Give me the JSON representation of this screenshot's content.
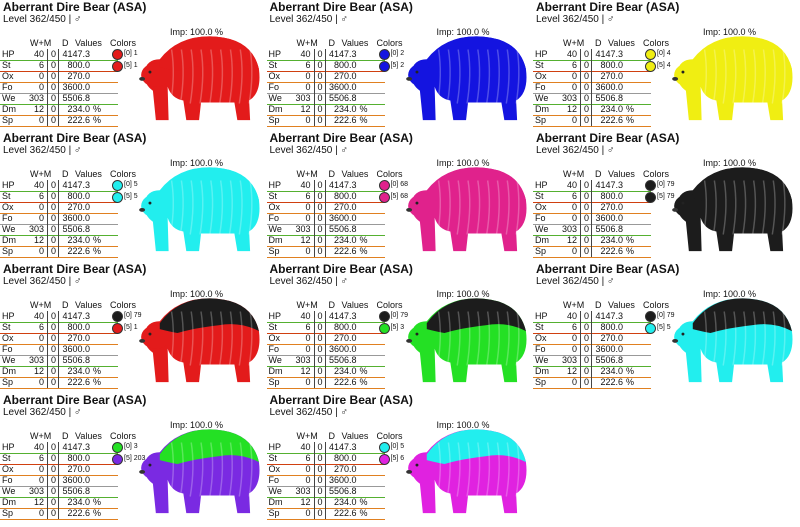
{
  "cards": [
    {
      "title": "Aberrant Dire Bear (ASA)",
      "level": "Level 362/450 | ♂",
      "imp": "Imp: 100.0 %",
      "header": [
        "W+M",
        "D",
        "Values"
      ],
      "colors_label": "Colors",
      "stats": [
        [
          "HP",
          "40",
          "0",
          "4147.3",
          ""
        ],
        [
          "St",
          "6",
          "0",
          "800.0",
          ""
        ],
        [
          "Ox",
          "0",
          "0",
          "270.0",
          ""
        ],
        [
          "Fo",
          "0",
          "0",
          "3600.0",
          ""
        ],
        [
          "We",
          "303",
          "0",
          "5506.8",
          ""
        ],
        [
          "Dm",
          "12",
          "0",
          "234.0",
          "%"
        ],
        [
          "Sp",
          "0",
          "0",
          "222.6",
          "%"
        ]
      ],
      "colors": [
        {
          "label": "[0] 1",
          "color": "#e31b1b"
        },
        {
          "label": "[5] 1",
          "color": "#e31b1b"
        }
      ]
    },
    {
      "title": "Aberrant Dire Bear (ASA)",
      "level": "Level 362/450 | ♂",
      "imp": "Imp: 100.0 %",
      "header": [
        "W+M",
        "D",
        "Values"
      ],
      "colors_label": "Colors",
      "stats": [
        [
          "HP",
          "40",
          "0",
          "4147.3",
          ""
        ],
        [
          "St",
          "6",
          "0",
          "800.0",
          ""
        ],
        [
          "Ox",
          "0",
          "0",
          "270.0",
          ""
        ],
        [
          "Fo",
          "0",
          "0",
          "3600.0",
          ""
        ],
        [
          "We",
          "303",
          "0",
          "5506.8",
          ""
        ],
        [
          "Dm",
          "12",
          "0",
          "234.0",
          "%"
        ],
        [
          "Sp",
          "0",
          "0",
          "222.6",
          "%"
        ]
      ],
      "colors": [
        {
          "label": "[0] 2",
          "color": "#1414e0"
        },
        {
          "label": "[5] 2",
          "color": "#1414e0"
        }
      ]
    },
    {
      "title": "Aberrant Dire Bear (ASA)",
      "level": "Level 362/450 | ♂",
      "imp": "Imp: 100.0 %",
      "header": [
        "W+M",
        "D",
        "Values"
      ],
      "colors_label": "Colors",
      "stats": [
        [
          "HP",
          "40",
          "0",
          "4147.3",
          ""
        ],
        [
          "St",
          "6",
          "0",
          "800.0",
          ""
        ],
        [
          "Ox",
          "0",
          "0",
          "270.0",
          ""
        ],
        [
          "Fo",
          "0",
          "0",
          "3600.0",
          ""
        ],
        [
          "We",
          "303",
          "0",
          "5506.8",
          ""
        ],
        [
          "Dm",
          "12",
          "0",
          "234.0",
          "%"
        ],
        [
          "Sp",
          "0",
          "0",
          "222.6",
          "%"
        ]
      ],
      "colors": [
        {
          "label": "[0] 4",
          "color": "#f0ee12"
        },
        {
          "label": "[5] 4",
          "color": "#f0ee12"
        }
      ]
    },
    {
      "title": "Aberrant Dire Bear (ASA)",
      "level": "Level 362/450 | ♂",
      "imp": "Imp: 100.0 %",
      "header": [
        "W+M",
        "D",
        "Values"
      ],
      "colors_label": "Colors",
      "stats": [
        [
          "HP",
          "40",
          "0",
          "4147.3",
          ""
        ],
        [
          "St",
          "6",
          "0",
          "800.0",
          ""
        ],
        [
          "Ox",
          "0",
          "0",
          "270.0",
          ""
        ],
        [
          "Fo",
          "0",
          "0",
          "3600.0",
          ""
        ],
        [
          "We",
          "303",
          "0",
          "5506.8",
          ""
        ],
        [
          "Dm",
          "12",
          "0",
          "234.0",
          "%"
        ],
        [
          "Sp",
          "0",
          "0",
          "222.6",
          "%"
        ]
      ],
      "colors": [
        {
          "label": "[0] 5",
          "color": "#22eeee"
        },
        {
          "label": "[5] 5",
          "color": "#22eeee"
        }
      ]
    },
    {
      "title": "Aberrant Dire Bear (ASA)",
      "level": "Level 362/450 | ♂",
      "imp": "Imp: 100.0 %",
      "header": [
        "W+M",
        "D",
        "Values"
      ],
      "colors_label": "Colors",
      "stats": [
        [
          "HP",
          "40",
          "0",
          "4147.3",
          ""
        ],
        [
          "St",
          "6",
          "0",
          "800.0",
          ""
        ],
        [
          "Ox",
          "0",
          "0",
          "270.0",
          ""
        ],
        [
          "Fo",
          "0",
          "0",
          "3600.0",
          ""
        ],
        [
          "We",
          "303",
          "0",
          "5506.8",
          ""
        ],
        [
          "Dm",
          "12",
          "0",
          "234.0",
          "%"
        ],
        [
          "Sp",
          "0",
          "0",
          "222.6",
          "%"
        ]
      ],
      "colors": [
        {
          "label": "[0] 68",
          "color": "#e0228c"
        },
        {
          "label": "[5] 68",
          "color": "#e0228c"
        }
      ]
    },
    {
      "title": "Aberrant Dire Bear (ASA)",
      "level": "Level 362/450 | ♂",
      "imp": "Imp: 100.0 %",
      "header": [
        "W+M",
        "D",
        "Values"
      ],
      "colors_label": "Colors",
      "stats": [
        [
          "HP",
          "40",
          "0",
          "4147.3",
          ""
        ],
        [
          "St",
          "6",
          "0",
          "800.0",
          ""
        ],
        [
          "Ox",
          "0",
          "0",
          "270.0",
          ""
        ],
        [
          "Fo",
          "0",
          "0",
          "3600.0",
          ""
        ],
        [
          "We",
          "303",
          "0",
          "5506.8",
          ""
        ],
        [
          "Dm",
          "12",
          "0",
          "234.0",
          "%"
        ],
        [
          "Sp",
          "0",
          "0",
          "222.6",
          "%"
        ]
      ],
      "colors": [
        {
          "label": "[0] 79",
          "color": "#1c1c1c"
        },
        {
          "label": "[5] 79",
          "color": "#1c1c1c"
        }
      ]
    },
    {
      "title": "Aberrant Dire Bear (ASA)",
      "level": "Level 362/450 | ♂",
      "imp": "Imp: 100.0 %",
      "header": [
        "W+M",
        "D",
        "Values"
      ],
      "colors_label": "Colors",
      "stats": [
        [
          "HP",
          "40",
          "0",
          "4147.3",
          ""
        ],
        [
          "St",
          "6",
          "0",
          "800.0",
          ""
        ],
        [
          "Ox",
          "0",
          "0",
          "270.0",
          ""
        ],
        [
          "Fo",
          "0",
          "0",
          "3600.0",
          ""
        ],
        [
          "We",
          "303",
          "0",
          "5506.8",
          ""
        ],
        [
          "Dm",
          "12",
          "0",
          "234.0",
          "%"
        ],
        [
          "Sp",
          "0",
          "0",
          "222.6",
          "%"
        ]
      ],
      "colors": [
        {
          "label": "[0] 79",
          "color": "#1c1c1c"
        },
        {
          "label": "[5] 1",
          "color": "#e31b1b"
        }
      ]
    },
    {
      "title": "Aberrant Dire Bear (ASA)",
      "level": "Level 362/450 | ♂",
      "imp": "Imp: 100.0 %",
      "header": [
        "W+M",
        "D",
        "Values"
      ],
      "colors_label": "Colors",
      "stats": [
        [
          "HP",
          "40",
          "0",
          "4147.3",
          ""
        ],
        [
          "St",
          "6",
          "0",
          "800.0",
          ""
        ],
        [
          "Ox",
          "0",
          "0",
          "270.0",
          ""
        ],
        [
          "Fo",
          "0",
          "0",
          "3600.0",
          ""
        ],
        [
          "We",
          "303",
          "0",
          "5506.8",
          ""
        ],
        [
          "Dm",
          "12",
          "0",
          "234.0",
          "%"
        ],
        [
          "Sp",
          "0",
          "0",
          "222.6",
          "%"
        ]
      ],
      "colors": [
        {
          "label": "[0] 79",
          "color": "#1c1c1c"
        },
        {
          "label": "[5] 3",
          "color": "#24e024"
        }
      ]
    },
    {
      "title": "Aberrant Dire Bear (ASA)",
      "level": "Level 362/450 | ♂",
      "imp": "Imp: 100.0 %",
      "header": [
        "W+M",
        "D",
        "Values"
      ],
      "colors_label": "Colors",
      "stats": [
        [
          "HP",
          "40",
          "0",
          "4147.3",
          ""
        ],
        [
          "St",
          "6",
          "0",
          "800.0",
          ""
        ],
        [
          "Ox",
          "0",
          "0",
          "270.0",
          ""
        ],
        [
          "Fo",
          "0",
          "0",
          "3600.0",
          ""
        ],
        [
          "We",
          "303",
          "0",
          "5506.8",
          ""
        ],
        [
          "Dm",
          "12",
          "0",
          "234.0",
          "%"
        ],
        [
          "Sp",
          "0",
          "0",
          "222.6",
          "%"
        ]
      ],
      "colors": [
        {
          "label": "[0] 79",
          "color": "#1c1c1c"
        },
        {
          "label": "[5] 5",
          "color": "#22eeee"
        }
      ]
    },
    {
      "title": "Aberrant Dire Bear (ASA)",
      "level": "Level 362/450 | ♂",
      "imp": "Imp: 100.0 %",
      "header": [
        "W+M",
        "D",
        "Values"
      ],
      "colors_label": "Colors",
      "stats": [
        [
          "HP",
          "40",
          "0",
          "4147.3",
          ""
        ],
        [
          "St",
          "6",
          "0",
          "800.0",
          ""
        ],
        [
          "Ox",
          "0",
          "0",
          "270.0",
          ""
        ],
        [
          "Fo",
          "0",
          "0",
          "3600.0",
          ""
        ],
        [
          "We",
          "303",
          "0",
          "5506.8",
          ""
        ],
        [
          "Dm",
          "12",
          "0",
          "234.0",
          "%"
        ],
        [
          "Sp",
          "0",
          "0",
          "222.6",
          "%"
        ]
      ],
      "colors": [
        {
          "label": "[0] 3",
          "color": "#24e024"
        },
        {
          "label": "[5] 203",
          "color": "#7a2ae2"
        }
      ]
    },
    {
      "title": "Aberrant Dire Bear (ASA)",
      "level": "Level 362/450 | ♂",
      "imp": "Imp: 100.0 %",
      "header": [
        "W+M",
        "D",
        "Values"
      ],
      "colors_label": "Colors",
      "stats": [
        [
          "HP",
          "40",
          "0",
          "4147.3",
          ""
        ],
        [
          "St",
          "6",
          "0",
          "800.0",
          ""
        ],
        [
          "Ox",
          "0",
          "0",
          "270.0",
          ""
        ],
        [
          "Fo",
          "0",
          "0",
          "3600.0",
          ""
        ],
        [
          "We",
          "303",
          "0",
          "5506.8",
          ""
        ],
        [
          "Dm",
          "12",
          "0",
          "234.0",
          "%"
        ],
        [
          "Sp",
          "0",
          "0",
          "222.6",
          "%"
        ]
      ],
      "colors": [
        {
          "label": "[0] 5",
          "color": "#22eeee"
        },
        {
          "label": "[5] 6",
          "color": "#e022e0"
        }
      ]
    }
  ]
}
